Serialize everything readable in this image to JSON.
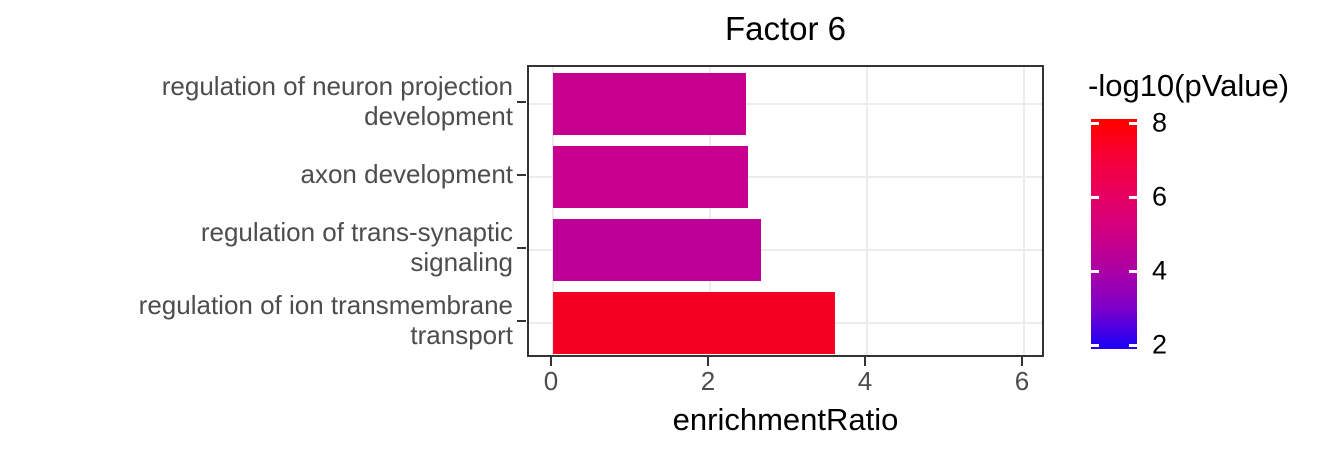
{
  "title": "Factor 6",
  "x_axis": {
    "label": "enrichmentRatio",
    "tick_labels": [
      "0",
      "2",
      "4",
      "6"
    ]
  },
  "legend": {
    "title": "-log10(pValue)",
    "tick_labels": [
      "8",
      "6",
      "4",
      "2"
    ]
  },
  "chart_data": {
    "type": "bar",
    "orientation": "horizontal",
    "title": "Factor 6",
    "xlabel": "enrichmentRatio",
    "ylabel": "",
    "xlim": [
      0,
      6.3
    ],
    "x_ticks": [
      0,
      2,
      4,
      6
    ],
    "grid": true,
    "legend_position": "right",
    "categories": [
      "regulation of neuron projection development",
      "axon development",
      "regulation of trans-synaptic signaling",
      "regulation of ion transmembrane transport"
    ],
    "label_lines": [
      [
        "regulation of neuron projection",
        "development"
      ],
      [
        "axon development"
      ],
      [
        "regulation of trans-synaptic",
        "signaling"
      ],
      [
        "regulation of ion transmembrane",
        "transport"
      ]
    ],
    "values": [
      2.46,
      2.49,
      2.65,
      3.59
    ],
    "color_values": [
      4.9,
      4.9,
      4.6,
      7.7
    ],
    "bar_colors": [
      "#C7008F",
      "#C7008F",
      "#BE0098",
      "#F40023"
    ],
    "color_scale": {
      "name": "-log10(pValue)",
      "min": 2,
      "max": 8,
      "breaks": [
        8,
        6,
        4,
        2
      ],
      "stops": [
        {
          "v": 8,
          "color": "#FF0000"
        },
        {
          "v": 7,
          "color": "#F6003C"
        },
        {
          "v": 6,
          "color": "#E60062"
        },
        {
          "v": 5,
          "color": "#CE0084"
        },
        {
          "v": 4,
          "color": "#AC00A5"
        },
        {
          "v": 3,
          "color": "#7E00C9"
        },
        {
          "v": 2,
          "color": "#2100F5"
        }
      ]
    }
  }
}
